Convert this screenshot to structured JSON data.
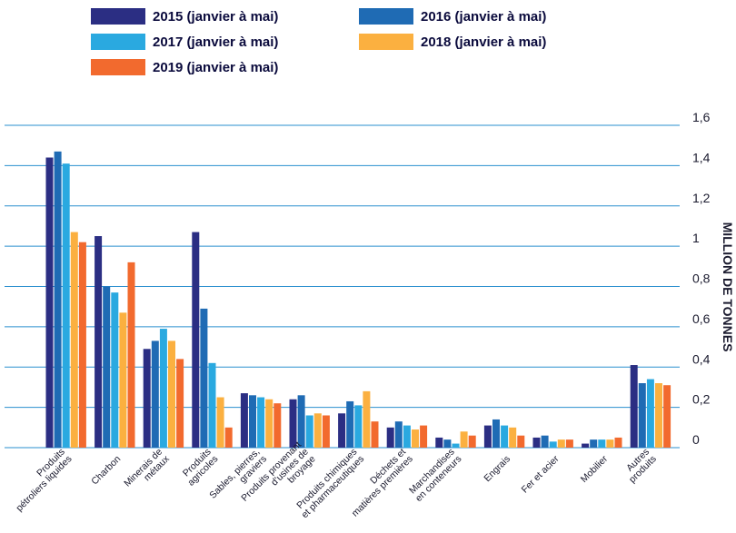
{
  "chart_data": {
    "type": "bar",
    "ylabel": "MILLION DE TONNES",
    "ylim": [
      0,
      1.6
    ],
    "y_ticks": [
      "0",
      "0,2",
      "0,4",
      "0,6",
      "0,8",
      "1",
      "1,2",
      "1,4",
      "1,6"
    ],
    "grid": true,
    "legend_position": "top",
    "categories": [
      [
        "Produits",
        "pétroliers liquides"
      ],
      [
        "Charbon"
      ],
      [
        "Minerais de",
        "métaux"
      ],
      [
        "Produits",
        "agricoles"
      ],
      [
        "Sables, pierres,",
        "graviers"
      ],
      [
        "Produits provenant",
        "d'usines de",
        "broyage"
      ],
      [
        "Produits chimiques",
        "et pharmaceutiques"
      ],
      [
        "Déchets et",
        "matières premières"
      ],
      [
        "Marchandises",
        "en conteneurs"
      ],
      [
        "Engrais"
      ],
      [
        "Fer et acier"
      ],
      [
        "Mobilier"
      ],
      [
        "Autres",
        "produits"
      ]
    ],
    "series": [
      {
        "name": "2015 (janvier à mai)",
        "color": "#2b2e83",
        "values": [
          1.44,
          1.05,
          0.49,
          1.07,
          0.27,
          0.24,
          0.17,
          0.1,
          0.05,
          0.11,
          0.05,
          0.02,
          0.41
        ]
      },
      {
        "name": "2016 (janvier à mai)",
        "color": "#1f6bb4",
        "values": [
          1.47,
          0.8,
          0.53,
          0.69,
          0.26,
          0.26,
          0.23,
          0.13,
          0.04,
          0.14,
          0.06,
          0.04,
          0.32
        ]
      },
      {
        "name": "2017 (janvier à mai)",
        "color": "#2aa9e0",
        "values": [
          1.41,
          0.77,
          0.59,
          0.42,
          0.25,
          0.16,
          0.21,
          0.11,
          0.02,
          0.11,
          0.03,
          0.04,
          0.34
        ]
      },
      {
        "name": "2018 (janvier à mai)",
        "color": "#fbb040",
        "values": [
          1.07,
          0.67,
          0.53,
          0.25,
          0.24,
          0.17,
          0.28,
          0.09,
          0.08,
          0.1,
          0.04,
          0.04,
          0.32
        ]
      },
      {
        "name": "2019 (janvier à mai)",
        "color": "#f26a2e",
        "values": [
          1.02,
          0.92,
          0.44,
          0.1,
          0.22,
          0.16,
          0.13,
          0.11,
          0.06,
          0.06,
          0.04,
          0.05,
          0.31
        ]
      }
    ]
  }
}
